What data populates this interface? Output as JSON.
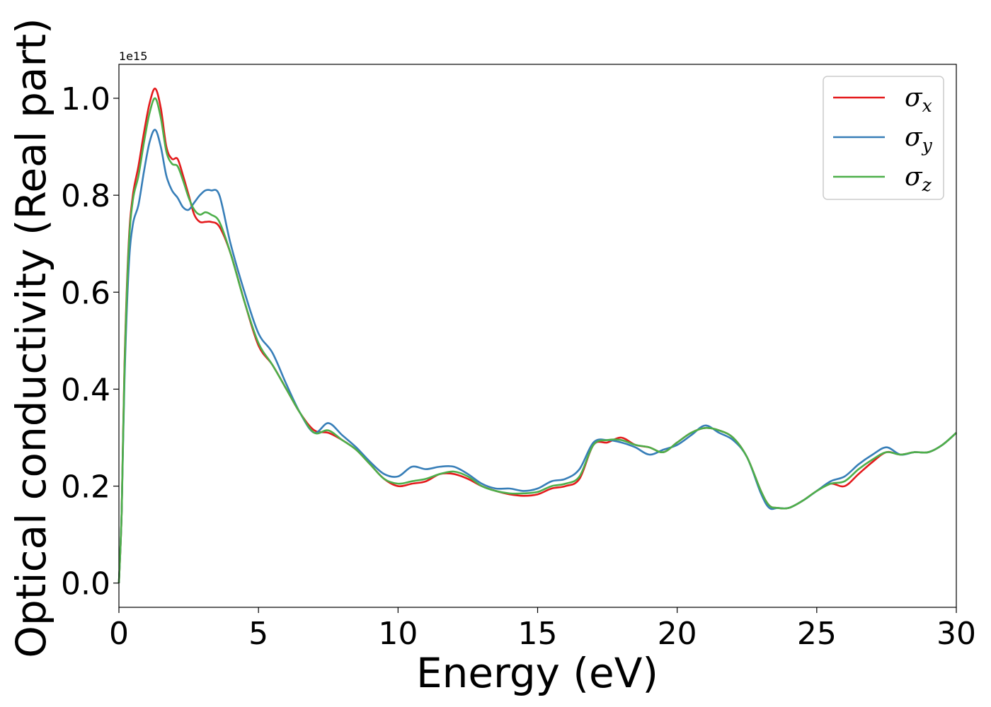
{
  "chart_data": {
    "type": "line",
    "title": "",
    "xlabel": "Energy (eV)",
    "ylabel": "Optical conductivity (Real part)",
    "y_offset_label": "1e15",
    "xlim": [
      0,
      30
    ],
    "ylim": [
      -0.05,
      1.07
    ],
    "x_ticks": [
      0,
      5,
      10,
      15,
      20,
      25,
      30
    ],
    "x_tick_labels": [
      "0",
      "5",
      "10",
      "15",
      "20",
      "25",
      "30"
    ],
    "y_ticks": [
      0.0,
      0.2,
      0.4,
      0.6,
      0.8,
      1.0
    ],
    "y_tick_labels": [
      "0.0",
      "0.2",
      "0.4",
      "0.6",
      "0.8",
      "1.0"
    ],
    "grid": false,
    "legend": {
      "position": "top-right"
    },
    "x": [
      0,
      0.1,
      0.2,
      0.35,
      0.5,
      0.7,
      0.9,
      1.1,
      1.3,
      1.5,
      1.7,
      1.9,
      2.1,
      2.3,
      2.5,
      2.7,
      2.9,
      3.1,
      3.3,
      3.6,
      4.0,
      4.5,
      5.0,
      5.5,
      6.0,
      6.5,
      7.0,
      7.5,
      8.0,
      8.5,
      9.0,
      9.5,
      10.0,
      10.5,
      11.0,
      11.5,
      12.0,
      12.5,
      13.0,
      13.5,
      14.0,
      14.5,
      15.0,
      15.5,
      16.0,
      16.5,
      17.0,
      17.5,
      18.0,
      18.5,
      19.0,
      19.5,
      20.0,
      20.5,
      21.0,
      21.5,
      22.0,
      22.5,
      23.0,
      23.3,
      23.6,
      24.0,
      24.5,
      25.0,
      25.5,
      26.0,
      26.5,
      27.0,
      27.5,
      28.0,
      28.5,
      29.0,
      29.5,
      30.0
    ],
    "series": [
      {
        "name": "σx",
        "symbol": "σ",
        "subscript": "x",
        "color": "#e41a1c",
        "values": [
          0.0,
          0.15,
          0.45,
          0.7,
          0.8,
          0.86,
          0.93,
          0.99,
          1.02,
          0.98,
          0.9,
          0.875,
          0.875,
          0.84,
          0.8,
          0.76,
          0.745,
          0.745,
          0.745,
          0.735,
          0.68,
          0.58,
          0.49,
          0.45,
          0.4,
          0.35,
          0.315,
          0.31,
          0.295,
          0.275,
          0.245,
          0.215,
          0.2,
          0.205,
          0.21,
          0.225,
          0.225,
          0.215,
          0.2,
          0.19,
          0.183,
          0.18,
          0.183,
          0.195,
          0.2,
          0.215,
          0.285,
          0.29,
          0.3,
          0.285,
          0.28,
          0.27,
          0.29,
          0.31,
          0.32,
          0.315,
          0.3,
          0.26,
          0.19,
          0.16,
          0.155,
          0.155,
          0.17,
          0.19,
          0.205,
          0.2,
          0.225,
          0.25,
          0.27,
          0.265,
          0.27,
          0.27,
          0.285,
          0.31
        ]
      },
      {
        "name": "σy",
        "symbol": "σ",
        "subscript": "y",
        "color": "#377eb8",
        "values": [
          0.0,
          0.15,
          0.42,
          0.65,
          0.74,
          0.78,
          0.85,
          0.91,
          0.935,
          0.9,
          0.84,
          0.81,
          0.795,
          0.775,
          0.77,
          0.785,
          0.8,
          0.81,
          0.81,
          0.8,
          0.7,
          0.6,
          0.515,
          0.475,
          0.41,
          0.35,
          0.31,
          0.33,
          0.305,
          0.28,
          0.25,
          0.225,
          0.22,
          0.24,
          0.235,
          0.24,
          0.24,
          0.225,
          0.205,
          0.195,
          0.195,
          0.19,
          0.195,
          0.21,
          0.215,
          0.235,
          0.29,
          0.295,
          0.29,
          0.28,
          0.265,
          0.275,
          0.285,
          0.305,
          0.325,
          0.31,
          0.295,
          0.26,
          0.185,
          0.155,
          0.155,
          0.155,
          0.17,
          0.19,
          0.21,
          0.22,
          0.245,
          0.265,
          0.28,
          0.265,
          0.27,
          0.27,
          0.285,
          0.31
        ]
      },
      {
        "name": "σz",
        "symbol": "σ",
        "subscript": "z",
        "color": "#4daf4a",
        "values": [
          0.0,
          0.15,
          0.44,
          0.69,
          0.79,
          0.84,
          0.91,
          0.97,
          1.0,
          0.96,
          0.89,
          0.865,
          0.86,
          0.83,
          0.795,
          0.77,
          0.76,
          0.765,
          0.76,
          0.745,
          0.68,
          0.58,
          0.495,
          0.45,
          0.4,
          0.35,
          0.31,
          0.315,
          0.295,
          0.275,
          0.245,
          0.215,
          0.205,
          0.21,
          0.215,
          0.225,
          0.23,
          0.22,
          0.2,
          0.19,
          0.185,
          0.185,
          0.188,
          0.2,
          0.205,
          0.22,
          0.285,
          0.295,
          0.295,
          0.285,
          0.28,
          0.27,
          0.29,
          0.31,
          0.32,
          0.315,
          0.3,
          0.26,
          0.19,
          0.16,
          0.155,
          0.155,
          0.17,
          0.19,
          0.205,
          0.21,
          0.235,
          0.255,
          0.27,
          0.265,
          0.27,
          0.27,
          0.285,
          0.31
        ]
      }
    ]
  }
}
